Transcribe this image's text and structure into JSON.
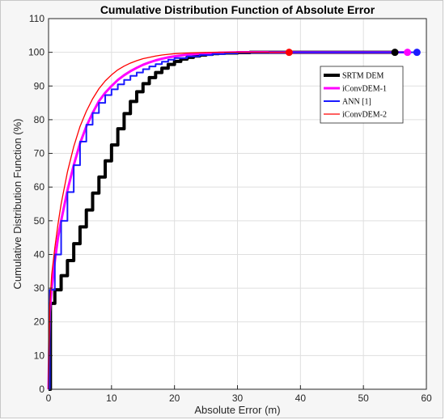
{
  "chart_data": {
    "type": "line",
    "title": "Cumulative Distribution Function of Absolute Error",
    "xlabel": "Absolute Error (m)",
    "ylabel": "Cumulative Distribution Function (%)",
    "xlim": [
      0,
      60
    ],
    "ylim": [
      0,
      110
    ],
    "xticks": [
      "0",
      "10",
      "20",
      "30",
      "40",
      "50",
      "60"
    ],
    "yticks": [
      "0",
      "10",
      "20",
      "30",
      "40",
      "50",
      "60",
      "70",
      "80",
      "90",
      "100",
      "110"
    ],
    "grid": true,
    "legend_position": "top-right",
    "series": [
      {
        "name": "SRTM DEM",
        "color": "#000000",
        "style": "step",
        "x": [
          0,
          0.3,
          1,
          2,
          3,
          4,
          5,
          6,
          7,
          8,
          9,
          10,
          11,
          12,
          13,
          14,
          15,
          16,
          17,
          18,
          19,
          20,
          21,
          22,
          23,
          24,
          25,
          26,
          27,
          28,
          30,
          32,
          35,
          40,
          45,
          55
        ],
        "y": [
          0,
          25.5,
          29.5,
          33.7,
          38.2,
          43.2,
          48.2,
          53.2,
          58.2,
          63.0,
          67.8,
          72.5,
          77.3,
          81.8,
          85.4,
          88.3,
          90.7,
          92.5,
          94.0,
          95.3,
          96.4,
          97.3,
          98.0,
          98.5,
          98.9,
          99.2,
          99.4,
          99.6,
          99.7,
          99.8,
          99.9,
          100,
          100,
          100,
          100,
          100
        ],
        "end_marker": {
          "x": 55,
          "y": 100
        }
      },
      {
        "name": "iConvDEM-1",
        "color": "#ff00ff",
        "style": "smooth",
        "x": [
          0,
          0.2,
          0.5,
          1,
          1.5,
          2,
          3,
          4,
          5,
          6,
          7,
          8,
          9,
          10,
          11,
          12,
          13,
          14,
          15,
          16,
          17,
          18,
          19,
          20,
          22,
          24,
          26,
          28,
          30,
          35,
          40,
          50,
          57
        ],
        "y": [
          0,
          23,
          30,
          38,
          45,
          50,
          59,
          66.5,
          73,
          78,
          82,
          85.5,
          88,
          90,
          91.8,
          93.2,
          94.4,
          95.4,
          96.3,
          97,
          97.6,
          98.1,
          98.5,
          98.8,
          99.3,
          99.6,
          99.8,
          99.9,
          100,
          100,
          100,
          100,
          100
        ],
        "end_marker": {
          "x": 57,
          "y": 100
        }
      },
      {
        "name": "ANN [1]",
        "color": "#1a1aff",
        "style": "step",
        "x": [
          0,
          0.2,
          1,
          2,
          3,
          4,
          5,
          6,
          7,
          8,
          9,
          10,
          11,
          12,
          13,
          14,
          15,
          16,
          17,
          18,
          19,
          20,
          22,
          24,
          26,
          28,
          30,
          35,
          40,
          50,
          58.5
        ],
        "y": [
          0,
          29.5,
          40,
          50,
          58.5,
          66.5,
          73.5,
          78.5,
          82,
          85,
          87.3,
          89,
          90.5,
          91.8,
          93,
          94,
          95,
          95.8,
          96.5,
          97.2,
          97.8,
          98.3,
          98.8,
          99.2,
          99.5,
          99.7,
          99.9,
          100,
          100,
          100,
          100
        ],
        "end_marker": {
          "x": 58.5,
          "y": 100
        }
      },
      {
        "name": "iConvDEM-2",
        "color": "#ff0000",
        "style": "smooth",
        "x": [
          0,
          0.2,
          0.5,
          1,
          1.5,
          2,
          3,
          4,
          5,
          6,
          7,
          8,
          9,
          10,
          11,
          12,
          13,
          14,
          15,
          16,
          17,
          18,
          19,
          20,
          22,
          24,
          26,
          28,
          30,
          35,
          38.2
        ],
        "y": [
          0,
          25,
          34,
          42,
          49,
          55,
          64.5,
          72,
          78,
          82.5,
          86.2,
          89.2,
          91.5,
          93.3,
          94.8,
          95.9,
          96.8,
          97.5,
          98.1,
          98.5,
          98.9,
          99.2,
          99.4,
          99.6,
          99.8,
          99.9,
          100,
          100,
          100,
          100,
          100
        ],
        "end_marker": {
          "x": 38.2,
          "y": 100
        }
      }
    ]
  }
}
